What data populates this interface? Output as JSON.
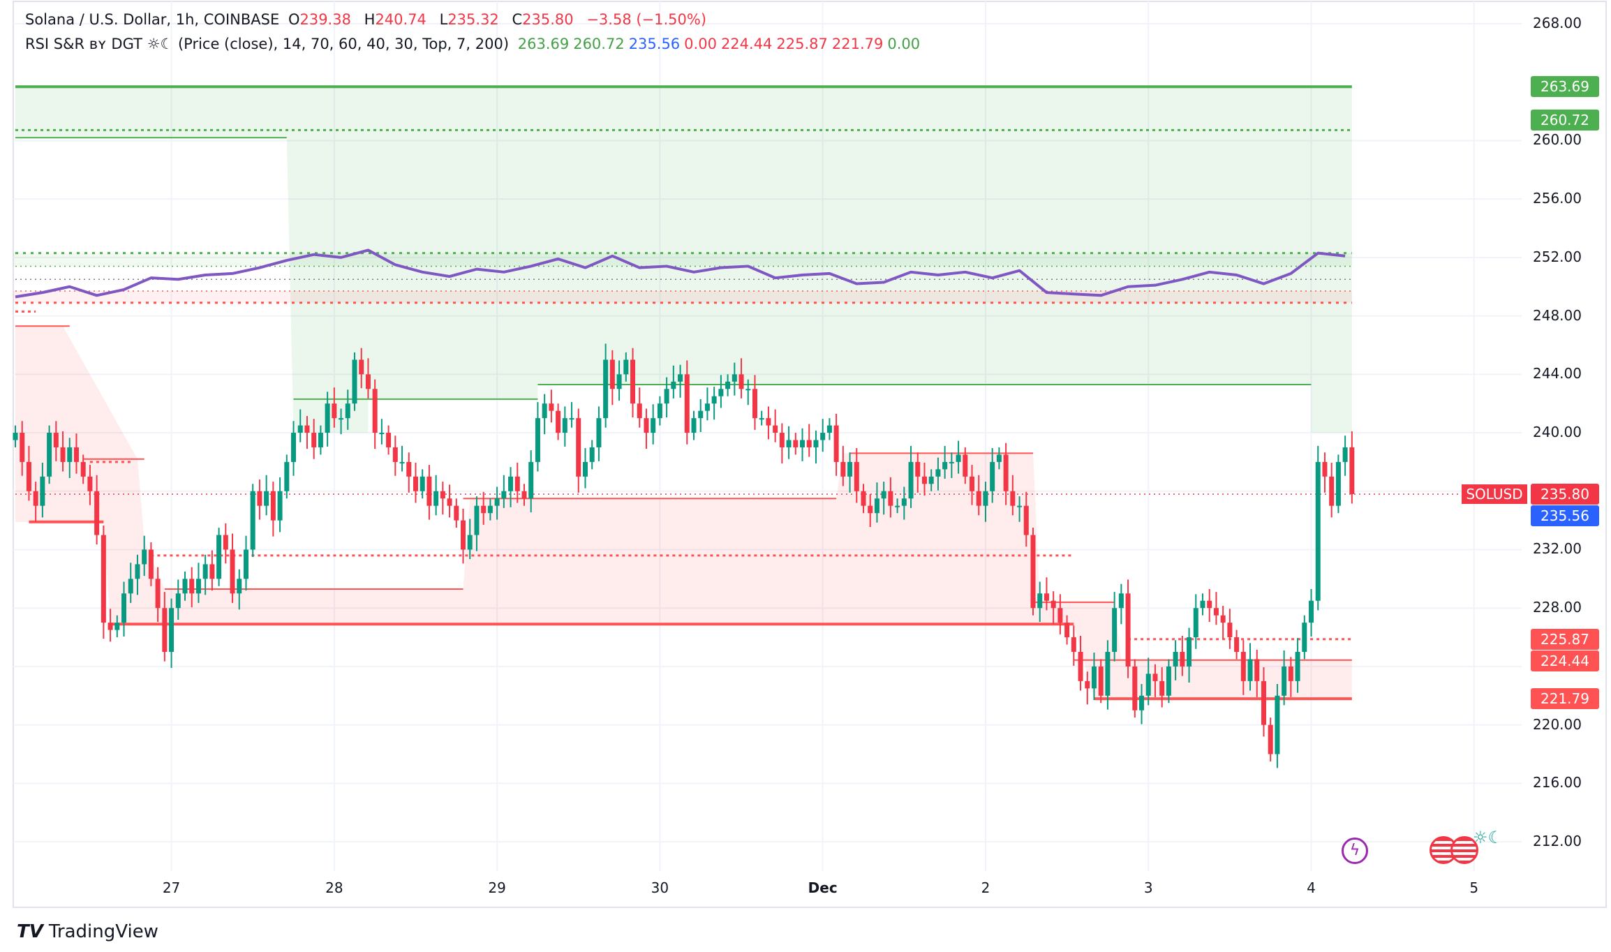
{
  "legend": {
    "symbol": "Solana / U.S. Dollar, 1h, COINBASE",
    "o_label": "O",
    "o": "239.38",
    "h_label": "H",
    "h": "240.74",
    "l_label": "L",
    "l": "235.32",
    "c_label": "C",
    "c": "235.80",
    "change": "−3.58 (−1.50%)",
    "indicator": "RSI S&R ʙʏ DGT ☼☾ (Price (close), 14, 70, 60, 40, 30, Top, 7, 200)",
    "values": [
      {
        "v": "263.69",
        "color": "#43a047"
      },
      {
        "v": "260.72",
        "color": "#43a047"
      },
      {
        "v": "235.56",
        "color": "#2962ff"
      },
      {
        "v": "0.00",
        "color": "#f23645"
      },
      {
        "v": "224.44",
        "color": "#f23645"
      },
      {
        "v": "225.87",
        "color": "#f23645"
      },
      {
        "v": "221.79",
        "color": "#f23645"
      },
      {
        "v": "0.00",
        "color": "#43a047"
      }
    ]
  },
  "symbol_label": "SOLUSD",
  "branding": "TradingView",
  "colors": {
    "up": "#089981",
    "down": "#f23645",
    "support": "#ff5252",
    "resistance": "#4caf50",
    "rsi": "#7e57c2",
    "grid": "#f0f3fa",
    "last": "#2962ff"
  },
  "chart_data": {
    "type": "candlestick",
    "ylim": [
      209,
      270
    ],
    "y_ticks": [
      "268.00",
      "260.00",
      "256.00",
      "252.00",
      "248.00",
      "244.00",
      "240.00",
      "232.00",
      "228.00",
      "220.00",
      "216.00",
      "212.00"
    ],
    "x_ticks": [
      {
        "label": "27",
        "i": 23
      },
      {
        "label": "28",
        "i": 47
      },
      {
        "label": "29",
        "i": 71
      },
      {
        "label": "30",
        "i": 95
      },
      {
        "label": "Dec",
        "i": 119
      },
      {
        "label": "2",
        "i": 143
      },
      {
        "label": "3",
        "i": 167
      },
      {
        "label": "4",
        "i": 191
      },
      {
        "label": "5",
        "i": 215
      }
    ],
    "first_open": 239.5,
    "closes": [
      240,
      238,
      236,
      235,
      237,
      240,
      239,
      238,
      239,
      238,
      237,
      236,
      233,
      227,
      226.5,
      227,
      229,
      230,
      231,
      232,
      230,
      228,
      225,
      228,
      229,
      230,
      229,
      230,
      231,
      230,
      233,
      232,
      229,
      230,
      232,
      236,
      235,
      236,
      234,
      236,
      238,
      240,
      240.5,
      240,
      239,
      240,
      242,
      241,
      241,
      242,
      245,
      244,
      243,
      240,
      240,
      239,
      238,
      238,
      237,
      236,
      237,
      235,
      236,
      235.5,
      235,
      234,
      232,
      233,
      235,
      234.5,
      235,
      235.5,
      236,
      237,
      236,
      235.5,
      238,
      241,
      242,
      241.5,
      240,
      241,
      241,
      237,
      238,
      239,
      241,
      245,
      243,
      244,
      245,
      242,
      241,
      240,
      241,
      242,
      243,
      243.5,
      244,
      240,
      241,
      241.5,
      242,
      242.5,
      243,
      243.5,
      244,
      243,
      243,
      241,
      241,
      240.5,
      240,
      239,
      239.5,
      239,
      239.5,
      239,
      239.5,
      240,
      240.5,
      238,
      237,
      238,
      236,
      235,
      234.5,
      235.5,
      236,
      235,
      235,
      235.5,
      238,
      237,
      236.5,
      237,
      237.5,
      238,
      238,
      238.5,
      237,
      236,
      235,
      236,
      238,
      238.5,
      236,
      235,
      235,
      233,
      228,
      229,
      228.5,
      228,
      227,
      226,
      225,
      223,
      222.5,
      224,
      222,
      225,
      228,
      229,
      224,
      221,
      222,
      223.5,
      223,
      222,
      224,
      225,
      224,
      226,
      228,
      228.5,
      228,
      227.5,
      227,
      226,
      225,
      223,
      224.5,
      223,
      220,
      218,
      222,
      224,
      223,
      225,
      227,
      228.5,
      238,
      237,
      235,
      238,
      239,
      235.8
    ],
    "rsi_line_every_4": [
      249.3,
      249.6,
      250,
      249.4,
      249.8,
      250.6,
      250.5,
      250.8,
      250.9,
      251.3,
      251.8,
      252.2,
      252,
      252.5,
      251.5,
      251,
      250.7,
      251.2,
      251,
      251.4,
      251.9,
      251.3,
      252.1,
      251.3,
      251.4,
      251,
      251.3,
      251.4,
      250.6,
      250.8,
      250.9,
      250.2,
      250.3,
      251,
      250.8,
      251,
      250.6,
      251.1,
      249.6,
      249.5,
      249.4,
      250,
      250.1,
      250.5,
      251,
      250.8,
      250.2,
      250.9,
      252.3,
      252.1
    ],
    "levels": [
      {
        "p": 263.69,
        "from": 0,
        "to": 197,
        "color": "#4caf50",
        "style": "solid",
        "w": 4
      },
      {
        "p": 260.72,
        "from": 0,
        "to": 197,
        "color": "#4caf50",
        "style": "cross",
        "w": 3
      },
      {
        "p": 260.2,
        "from": 0,
        "to": 40,
        "color": "#4caf50",
        "style": "solid",
        "w": 2
      },
      {
        "p": 242.3,
        "from": 41,
        "to": 77,
        "color": "#4caf50",
        "style": "solid",
        "w": 2
      },
      {
        "p": 243.3,
        "from": 77,
        "to": 191,
        "color": "#4caf50",
        "style": "solid",
        "w": 2
      },
      {
        "p": 252.3,
        "from": 0,
        "to": 197,
        "color": "#4caf50",
        "style": "square",
        "w": 3
      },
      {
        "p": 251.4,
        "from": 0,
        "to": 197,
        "color": "#4caf50",
        "style": "dot",
        "w": 1.5
      },
      {
        "p": 250.5,
        "from": 0,
        "to": 197,
        "color": "#787b86",
        "style": "dot",
        "w": 1.5
      },
      {
        "p": 249.7,
        "from": 0,
        "to": 197,
        "color": "#ff5252",
        "style": "dot",
        "w": 1.5
      },
      {
        "p": 248.9,
        "from": 0,
        "to": 197,
        "color": "#ff5252",
        "style": "square",
        "w": 3
      },
      {
        "p": 248.3,
        "from": 0,
        "to": 3,
        "color": "#ff5252",
        "style": "cross",
        "w": 3
      },
      {
        "p": 247.3,
        "from": 0,
        "to": 8,
        "color": "#ff5252",
        "style": "solid",
        "w": 2
      },
      {
        "p": 238.2,
        "from": 10,
        "to": 19,
        "color": "#ff5252",
        "style": "solid",
        "w": 2
      },
      {
        "p": 238.0,
        "from": 11,
        "to": 17,
        "color": "#ff5252",
        "style": "cross",
        "w": 3
      },
      {
        "p": 233.9,
        "from": 2,
        "to": 13,
        "color": "#ff5252",
        "style": "solid",
        "w": 4
      },
      {
        "p": 231.6,
        "from": 20,
        "to": 156,
        "color": "#ff5252",
        "style": "cross",
        "w": 3
      },
      {
        "p": 229.3,
        "from": 22,
        "to": 66,
        "color": "#ff5252",
        "style": "solid",
        "w": 2
      },
      {
        "p": 235.5,
        "from": 66,
        "to": 121,
        "color": "#ff5252",
        "style": "solid",
        "w": 2
      },
      {
        "p": 238.6,
        "from": 123,
        "to": 150,
        "color": "#ff5252",
        "style": "solid",
        "w": 2
      },
      {
        "p": 226.9,
        "from": 14,
        "to": 156,
        "color": "#ff5252",
        "style": "solid",
        "w": 4
      },
      {
        "p": 228.4,
        "from": 150,
        "to": 162,
        "color": "#ff5252",
        "style": "solid",
        "w": 2
      },
      {
        "p": 225.87,
        "from": 164,
        "to": 197,
        "color": "#ff5252",
        "style": "cross",
        "w": 3
      },
      {
        "p": 224.44,
        "from": 156,
        "to": 197,
        "color": "#ff5252",
        "style": "solid",
        "w": 2
      },
      {
        "p": 221.79,
        "from": 159,
        "to": 197,
        "color": "#ff5252",
        "style": "solid",
        "w": 4
      },
      {
        "p": 235.8,
        "from": 0,
        "to": 222,
        "color": "#f23645",
        "style": "dot",
        "w": 1.5
      }
    ],
    "green_zone": {
      "top": [
        [
          0,
          263.69
        ],
        [
          197,
          263.69
        ]
      ],
      "bottom": [
        [
          197,
          240
        ],
        [
          191,
          240
        ],
        [
          191,
          243.3
        ],
        [
          77,
          243.3
        ],
        [
          77,
          242.3
        ],
        [
          52,
          242.3
        ],
        [
          52,
          240
        ],
        [
          41,
          240
        ],
        [
          40,
          260.2
        ],
        [
          0,
          260.2
        ]
      ]
    },
    "red_zone": {
      "top": [
        [
          0,
          247.3
        ],
        [
          7,
          247.3
        ],
        [
          18,
          238.2
        ],
        [
          19,
          232.6
        ],
        [
          22,
          229.3
        ],
        [
          66,
          229.3
        ],
        [
          67,
          235.5
        ],
        [
          121,
          235.5
        ],
        [
          122,
          238.6
        ],
        [
          150,
          238.6
        ],
        [
          151,
          228.4
        ],
        [
          162,
          228.4
        ],
        [
          163,
          224.44
        ],
        [
          197,
          224.44
        ]
      ],
      "bottom": [
        [
          197,
          221.79
        ],
        [
          159,
          221.79
        ],
        [
          156,
          226.9
        ],
        [
          14,
          226.9
        ],
        [
          13,
          233.9
        ],
        [
          0,
          233.9
        ]
      ]
    },
    "price_badges": [
      {
        "label": "263.69",
        "p": 263.69,
        "color": "#4caf50"
      },
      {
        "label": "260.72",
        "p": 260.72,
        "color": "#4caf50"
      },
      {
        "label": "235.80",
        "p": 235.8,
        "color": "#f23645"
      },
      {
        "label": "235.56",
        "p": 235.56,
        "color": "#2962ff"
      },
      {
        "label": "225.87",
        "p": 225.87,
        "color": "#ff5252"
      },
      {
        "label": "224.44",
        "p": 224.44,
        "color": "#ff5252"
      },
      {
        "label": "221.79",
        "p": 221.79,
        "color": "#ff5252"
      }
    ]
  }
}
